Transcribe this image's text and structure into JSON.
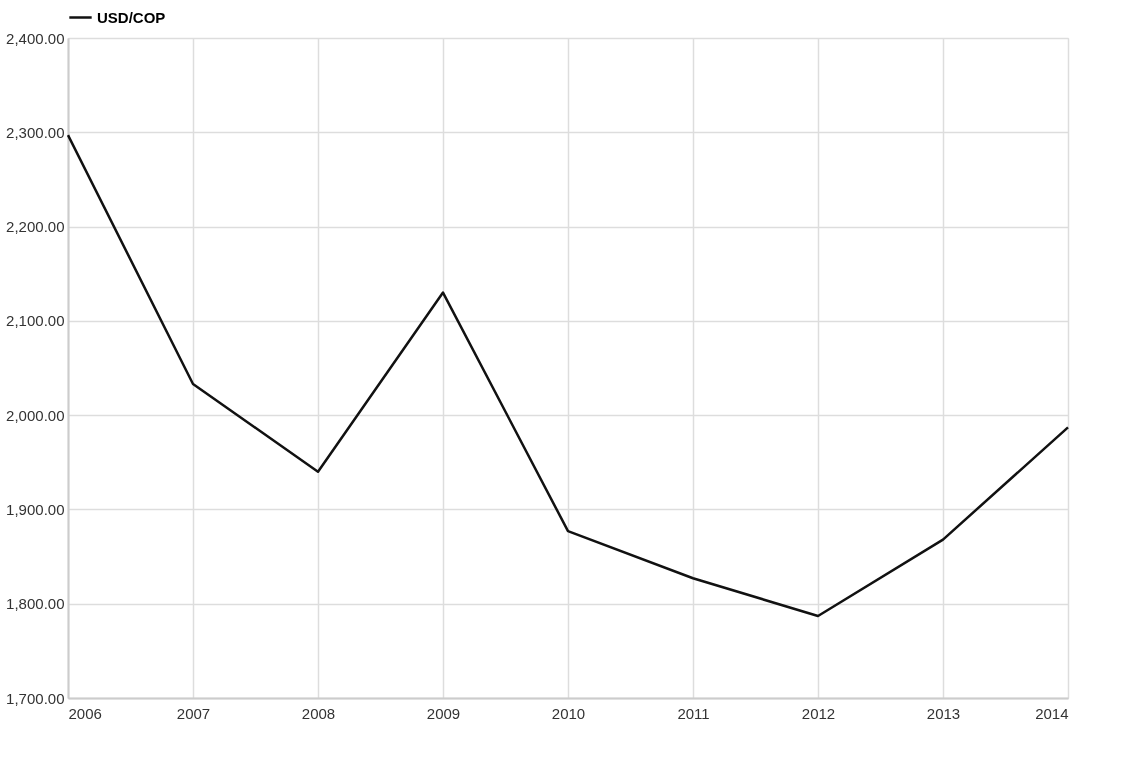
{
  "chart_data": {
    "type": "line",
    "x": [
      2006,
      2007,
      2008,
      2009,
      2010,
      2011,
      2012,
      2013,
      2014
    ],
    "series": [
      {
        "name": "USD/COP",
        "color": "#111111",
        "values": [
          2297,
          2033,
          1940,
          2130,
          1877,
          1827,
          1787,
          1868,
          1987
        ]
      }
    ],
    "xlim": [
      2006,
      2014
    ],
    "xticks": [
      2006,
      2007,
      2008,
      2009,
      2010,
      2011,
      2012,
      2013,
      2014
    ],
    "ylim": [
      1700,
      2400
    ],
    "yticks": [
      {
        "value": 1700,
        "label": "1,700.00"
      },
      {
        "value": 1800,
        "label": "1,800.00"
      },
      {
        "value": 1900,
        "label": "1,900.00"
      },
      {
        "value": 2000,
        "label": "2,000.00"
      },
      {
        "value": 2100,
        "label": "2,100.00"
      },
      {
        "value": 2200,
        "label": "2,200.00"
      },
      {
        "value": 2300,
        "label": "2,300.00"
      },
      {
        "value": 2400,
        "label": "2,400.00"
      }
    ],
    "grid": true,
    "legend": "top left",
    "marker": "none",
    "line_style": "solid"
  }
}
